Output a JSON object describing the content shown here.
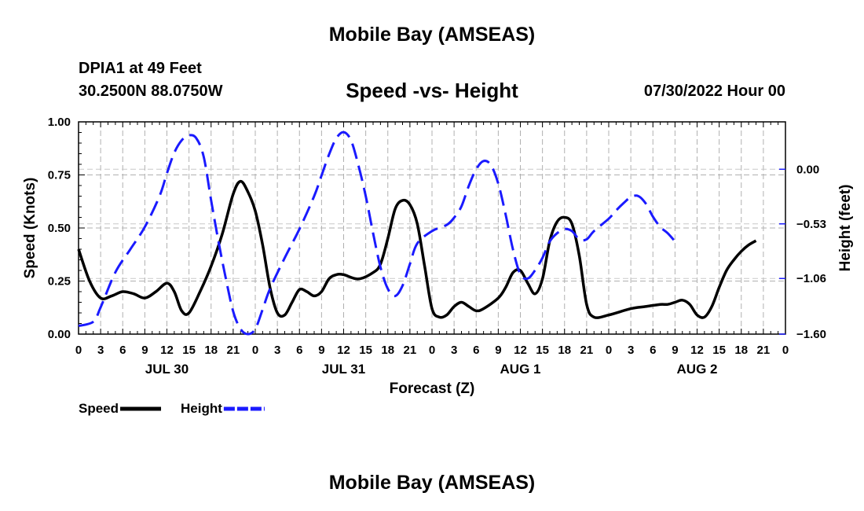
{
  "header": {
    "title": "Mobile Bay (AMSEAS)",
    "station": "DPIA1 at 49 Feet",
    "coords": "30.2500N  88.0750W",
    "timestamp": "07/30/2022 Hour 00"
  },
  "footer": {
    "title": "Mobile Bay (AMSEAS)"
  },
  "chart_data": {
    "type": "line",
    "title": "Speed -vs- Height",
    "xlabel": "Forecast (Z)",
    "ylabel": "Speed (Knots)",
    "y2label": "Height (feet)",
    "ylim": [
      0,
      1.0
    ],
    "y2lim": [
      -1.6,
      0.46
    ],
    "yticks": [
      {
        "v": 0.0,
        "label": "0.00"
      },
      {
        "v": 0.25,
        "label": "0.25"
      },
      {
        "v": 0.5,
        "label": "0.50"
      },
      {
        "v": 0.75,
        "label": "0.75"
      },
      {
        "v": 1.0,
        "label": "1.00"
      }
    ],
    "y2ticks": [
      {
        "v": 0.0,
        "label": "0.00"
      },
      {
        "v": -0.53,
        "label": "−0.53"
      },
      {
        "v": -1.06,
        "label": "−1.06"
      },
      {
        "v": -1.6,
        "label": "−1.60"
      }
    ],
    "xlim": [
      0,
      96
    ],
    "xtick_labels": [
      "0",
      "3",
      "6",
      "9",
      "12",
      "15",
      "18",
      "21",
      "0",
      "3",
      "6",
      "9",
      "12",
      "15",
      "18",
      "21",
      "0",
      "3",
      "6",
      "9",
      "12",
      "15",
      "18",
      "21",
      "0",
      "3",
      "6",
      "9",
      "12",
      "15",
      "18",
      "21",
      "0"
    ],
    "day_labels": [
      {
        "hour": 12,
        "label": "JUL 30"
      },
      {
        "hour": 36,
        "label": "JUL 31"
      },
      {
        "hour": 60,
        "label": "AUG 1"
      },
      {
        "hour": 84,
        "label": "AUG 2"
      }
    ],
    "series": [
      {
        "name": "Speed",
        "axis": "left",
        "color": "#000000",
        "dash": "solid",
        "points": [
          [
            0,
            0.4
          ],
          [
            1.5,
            0.25
          ],
          [
            3,
            0.17
          ],
          [
            4.5,
            0.18
          ],
          [
            6,
            0.2
          ],
          [
            7.5,
            0.19
          ],
          [
            9,
            0.17
          ],
          [
            10.5,
            0.2
          ],
          [
            12,
            0.24
          ],
          [
            13,
            0.2
          ],
          [
            14,
            0.11
          ],
          [
            15,
            0.1
          ],
          [
            16.5,
            0.2
          ],
          [
            18,
            0.32
          ],
          [
            19.5,
            0.47
          ],
          [
            21,
            0.66
          ],
          [
            22,
            0.72
          ],
          [
            23,
            0.67
          ],
          [
            24,
            0.58
          ],
          [
            25,
            0.42
          ],
          [
            26,
            0.22
          ],
          [
            27,
            0.1
          ],
          [
            28,
            0.09
          ],
          [
            29,
            0.15
          ],
          [
            30,
            0.21
          ],
          [
            31,
            0.2
          ],
          [
            32,
            0.18
          ],
          [
            33,
            0.2
          ],
          [
            34,
            0.26
          ],
          [
            35,
            0.28
          ],
          [
            36,
            0.28
          ],
          [
            38,
            0.26
          ],
          [
            40,
            0.29
          ],
          [
            41,
            0.33
          ],
          [
            42,
            0.45
          ],
          [
            43,
            0.59
          ],
          [
            44,
            0.63
          ],
          [
            45,
            0.61
          ],
          [
            46,
            0.52
          ],
          [
            47,
            0.32
          ],
          [
            48,
            0.12
          ],
          [
            49,
            0.08
          ],
          [
            50,
            0.09
          ],
          [
            51,
            0.13
          ],
          [
            52,
            0.15
          ],
          [
            53,
            0.13
          ],
          [
            54,
            0.11
          ],
          [
            55,
            0.12
          ],
          [
            57,
            0.17
          ],
          [
            58,
            0.22
          ],
          [
            59,
            0.29
          ],
          [
            60,
            0.3
          ],
          [
            61,
            0.24
          ],
          [
            62,
            0.19
          ],
          [
            63,
            0.26
          ],
          [
            64,
            0.44
          ],
          [
            65,
            0.53
          ],
          [
            66,
            0.55
          ],
          [
            67,
            0.52
          ],
          [
            68,
            0.37
          ],
          [
            69,
            0.14
          ],
          [
            70,
            0.08
          ],
          [
            72,
            0.09
          ],
          [
            75,
            0.12
          ],
          [
            77,
            0.13
          ],
          [
            79,
            0.14
          ],
          [
            80,
            0.14
          ],
          [
            81,
            0.15
          ],
          [
            82,
            0.16
          ],
          [
            83,
            0.14
          ],
          [
            84,
            0.09
          ],
          [
            85,
            0.08
          ],
          [
            86,
            0.13
          ],
          [
            87,
            0.22
          ],
          [
            88,
            0.3
          ],
          [
            89,
            0.35
          ],
          [
            90,
            0.39
          ],
          [
            91,
            0.42
          ],
          [
            92,
            0.44
          ]
        ]
      },
      {
        "name": "Height",
        "axis": "right",
        "color": "#1a1aff",
        "dash": "dashed",
        "points": [
          [
            0,
            -1.52
          ],
          [
            2,
            -1.48
          ],
          [
            3,
            -1.34
          ],
          [
            5,
            -1.0
          ],
          [
            7,
            -0.78
          ],
          [
            9,
            -0.56
          ],
          [
            11,
            -0.26
          ],
          [
            12,
            -0.04
          ],
          [
            13,
            0.16
          ],
          [
            14,
            0.28
          ],
          [
            15,
            0.33
          ],
          [
            16,
            0.3
          ],
          [
            17,
            0.12
          ],
          [
            18,
            -0.3
          ],
          [
            19,
            -0.7
          ],
          [
            20,
            -1.06
          ],
          [
            21,
            -1.38
          ],
          [
            22,
            -1.55
          ],
          [
            23,
            -1.6
          ],
          [
            24,
            -1.55
          ],
          [
            25,
            -1.36
          ],
          [
            26,
            -1.16
          ],
          [
            28,
            -0.86
          ],
          [
            30,
            -0.58
          ],
          [
            32,
            -0.26
          ],
          [
            33,
            -0.06
          ],
          [
            34,
            0.14
          ],
          [
            35,
            0.3
          ],
          [
            36,
            0.36
          ],
          [
            37,
            0.28
          ],
          [
            38,
            0.04
          ],
          [
            39,
            -0.26
          ],
          [
            40,
            -0.62
          ],
          [
            41,
            -0.95
          ],
          [
            42,
            -1.16
          ],
          [
            43,
            -1.23
          ],
          [
            44,
            -1.13
          ],
          [
            45,
            -0.92
          ],
          [
            46,
            -0.72
          ],
          [
            48,
            -0.6
          ],
          [
            50,
            -0.54
          ],
          [
            51,
            -0.47
          ],
          [
            52,
            -0.36
          ],
          [
            53,
            -0.16
          ],
          [
            54,
            0.0
          ],
          [
            55,
            0.08
          ],
          [
            56,
            0.04
          ],
          [
            57,
            -0.14
          ],
          [
            58,
            -0.44
          ],
          [
            59,
            -0.78
          ],
          [
            60,
            -1.02
          ],
          [
            61,
            -1.06
          ],
          [
            62,
            -0.98
          ],
          [
            63,
            -0.86
          ],
          [
            64,
            -0.7
          ],
          [
            65,
            -0.62
          ],
          [
            66,
            -0.58
          ],
          [
            67,
            -0.6
          ],
          [
            68,
            -0.68
          ],
          [
            69,
            -0.68
          ],
          [
            70,
            -0.6
          ],
          [
            72,
            -0.48
          ],
          [
            73,
            -0.4
          ],
          [
            74,
            -0.33
          ],
          [
            75,
            -0.27
          ],
          [
            76,
            -0.26
          ],
          [
            77,
            -0.33
          ],
          [
            78,
            -0.46
          ],
          [
            79,
            -0.56
          ],
          [
            80,
            -0.62
          ],
          [
            81,
            -0.7
          ]
        ]
      }
    ],
    "legend": [
      {
        "label": "Speed",
        "color": "#000000",
        "dash": "solid"
      },
      {
        "label": "Height",
        "color": "#1a1aff",
        "dash": "dashed"
      }
    ],
    "grid": true,
    "legend_position": "bottom-left"
  }
}
